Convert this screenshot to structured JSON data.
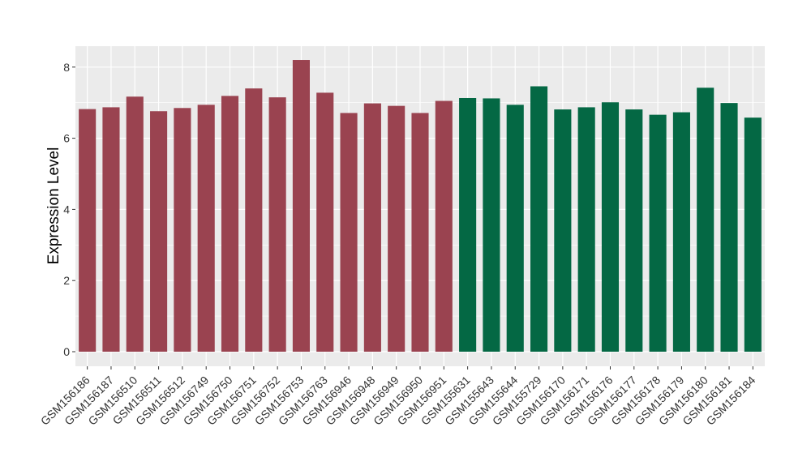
{
  "chart_data": {
    "type": "bar",
    "title": "",
    "xlabel": "",
    "ylabel": "Expression Level",
    "ylim": [
      0,
      8.6
    ],
    "yticks": [
      0,
      2,
      4,
      6,
      8
    ],
    "grid": true,
    "colors": {
      "group_a": "#9a4350",
      "group_b": "#046844",
      "panel": "#ebebeb",
      "grid": "#ffffff"
    },
    "categories": [
      "GSM156186",
      "GSM156187",
      "GSM156510",
      "GSM156511",
      "GSM156512",
      "GSM156749",
      "GSM156750",
      "GSM156751",
      "GSM156752",
      "GSM156753",
      "GSM156763",
      "GSM156946",
      "GSM156948",
      "GSM156949",
      "GSM156950",
      "GSM156951",
      "GSM155631",
      "GSM155643",
      "GSM155644",
      "GSM155729",
      "GSM156170",
      "GSM156171",
      "GSM156176",
      "GSM156177",
      "GSM156178",
      "GSM156179",
      "GSM156180",
      "GSM156181",
      "GSM156184"
    ],
    "values": [
      6.82,
      6.87,
      7.17,
      6.76,
      6.85,
      6.94,
      7.19,
      7.4,
      7.15,
      8.2,
      7.28,
      6.71,
      6.98,
      6.91,
      6.71,
      7.05,
      7.13,
      7.12,
      6.94,
      7.46,
      6.81,
      6.87,
      7.01,
      6.81,
      6.66,
      6.73,
      7.42,
      6.99,
      6.58
    ],
    "groups": [
      "a",
      "a",
      "a",
      "a",
      "a",
      "a",
      "a",
      "a",
      "a",
      "a",
      "a",
      "a",
      "a",
      "a",
      "a",
      "a",
      "b",
      "b",
      "b",
      "b",
      "b",
      "b",
      "b",
      "b",
      "b",
      "b",
      "b",
      "b",
      "b"
    ]
  }
}
